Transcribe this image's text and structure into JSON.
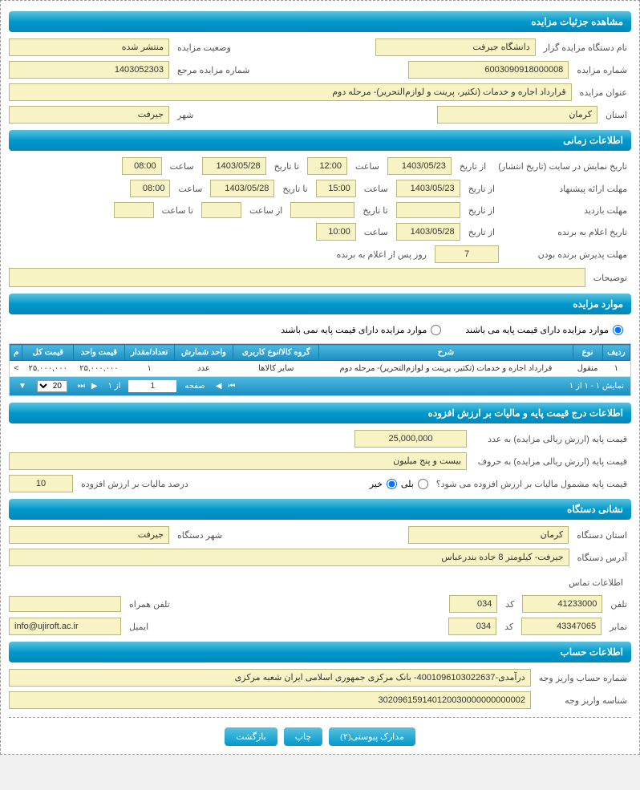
{
  "sections": {
    "details": "مشاهده جزئیات مزایده",
    "time": "اطلاعات زمانی",
    "items": "موارد مزایده",
    "price_tax": "اطلاعات درج قیمت پایه و مالیات بر ارزش افزوده",
    "org_addr": "نشانی دستگاه",
    "account": "اطلاعات حساب"
  },
  "details": {
    "agency_lbl": "نام دستگاه مزایده گزار",
    "agency": "دانشگاه جیرفت",
    "status_lbl": "وضعیت مزایده",
    "status": "منتشر شده",
    "no_lbl": "شماره مزایده",
    "no": "6003090918000008",
    "ref_lbl": "شماره مزایده مرجع",
    "ref": "1403052303",
    "title_lbl": "عنوان مزایده",
    "title": "قرارداد اجاره و خدمات (تکثیر، پرینت و لوازم‌التحریر)- مرحله دوم",
    "prov_lbl": "استان",
    "prov": "کرمان",
    "city_lbl": "شهر",
    "city": "جیرفت"
  },
  "time": {
    "pub_lbl": "تاریخ نمایش در سایت (تاریخ انتشار)",
    "from_lbl": "از تاریخ",
    "to_lbl": "تا تاریخ",
    "hour_lbl": "ساعت",
    "to_hour_lbl": "تا ساعت",
    "from_hour_lbl": "از ساعت",
    "pub_from": "1403/05/23",
    "pub_from_h": "12:00",
    "pub_to": "1403/05/28",
    "pub_to_h": "08:00",
    "offer_lbl": "مهلت ارائه پیشنهاد",
    "offer_from": "1403/05/23",
    "offer_from_h": "15:00",
    "offer_to": "1403/05/28",
    "offer_to_h": "08:00",
    "visit_lbl": "مهلت بازدید",
    "visit_from": "",
    "visit_to": "",
    "visit_from_h": "",
    "visit_to_h": "",
    "winner_lbl": "تاریخ اعلام به برنده",
    "winner_from": "1403/05/28",
    "winner_h": "10:00",
    "accept_lbl": "مهلت پذیرش برنده بودن",
    "accept_val": "7",
    "accept_suffix": "روز پس از اعلام به برنده",
    "desc_lbl": "توضیحات",
    "desc": ""
  },
  "items_radio": {
    "has_base": "موارد مزایده دارای قیمت پایه می باشند",
    "no_base": "موارد مزایده دارای قیمت پایه نمی باشند"
  },
  "table": {
    "headers": [
      "ردیف",
      "نوع",
      "شرح",
      "گروه کالا/نوع کاربری",
      "واحد شمارش",
      "تعداد/مقدار",
      "قیمت واحد",
      "قیمت کل",
      "م"
    ],
    "rows": [
      [
        "۱",
        "منقول",
        "قرارداد اجاره و خدمات (تکثیر، پرینت و لوازم‌التحریر)- مرحله دوم",
        "سایر کالاها",
        "عدد",
        "۱",
        "۲۵,۰۰۰,۰۰۰",
        "۲۵,۰۰۰,۰۰۰",
        ">"
      ]
    ],
    "pager_display": "نمایش ۱ - ۱ از ۱",
    "page_lbl": "صفحه",
    "page_val": "1",
    "of_lbl": "از ۱",
    "per_page": "20"
  },
  "price": {
    "base_num_lbl": "قیمت پایه (ارزش ریالی مزایده) به عدد",
    "base_num": "25,000,000",
    "base_txt_lbl": "قیمت پایه (ارزش ریالی مزایده) به حروف",
    "base_txt": "بیست و پنج میلیون",
    "vat_q_lbl": "قیمت پایه مشمول مالیات بر ارزش افزوده می شود؟",
    "yes": "بلی",
    "no": "خیر",
    "vat_pct_lbl": "درصد مالیات بر ارزش افزوده",
    "vat_pct": "10"
  },
  "org": {
    "prov_lbl": "استان دستگاه",
    "prov": "کرمان",
    "city_lbl": "شهر دستگاه",
    "city": "جیرفت",
    "addr_lbl": "آدرس دستگاه",
    "addr": "جیرفت- کیلومتر 8 جاده بندرعباس",
    "contact_title": "اطلاعات تماس",
    "tel_lbl": "تلفن",
    "tel": "41233000",
    "code_lbl": "کد",
    "tel_code": "034",
    "mobile_lbl": "تلفن همراه",
    "mobile": "",
    "fax_lbl": "نمابر",
    "fax": "43347065",
    "fax_code": "034",
    "email_lbl": "ایمیل",
    "email": "info@ujiroft.ac.ir"
  },
  "account": {
    "acc_no_lbl": "شماره حساب واریز وجه",
    "acc_no": "درآمدی-4001096103022637- بانک مرکزی جمهوری اسلامی ایران شعبه مرکزی",
    "pay_id_lbl": "شناسه واریز وجه",
    "pay_id": "302096159140120030000000000002"
  },
  "buttons": {
    "attach": "مدارک پیوستی(۲)",
    "print": "چاپ",
    "back": "بازگشت"
  }
}
